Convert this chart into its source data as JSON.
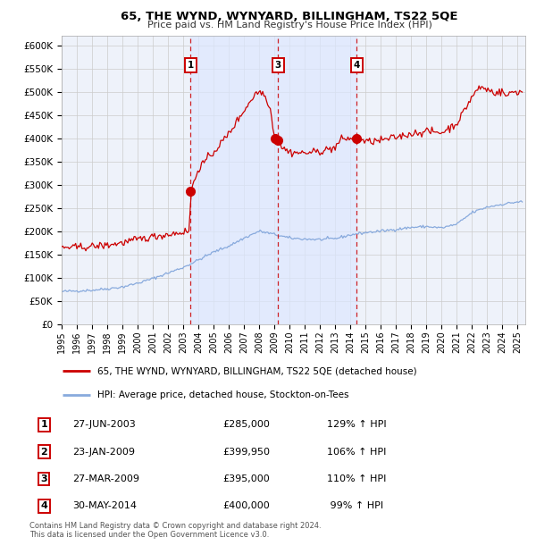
{
  "title1": "65, THE WYND, WYNYARD, BILLINGHAM, TS22 5QE",
  "title2": "Price paid vs. HM Land Registry's House Price Index (HPI)",
  "xlim_start": 1995.0,
  "xlim_end": 2025.5,
  "ylim_bottom": 0,
  "ylim_top": 620000,
  "background_color": "#ffffff",
  "plot_bg_color": "#eef2fa",
  "grid_color": "#cccccc",
  "sale_color": "#cc0000",
  "hpi_color": "#88aadd",
  "dashed_color": "#cc0000",
  "legend_sale_label": "65, THE WYND, WYNYARD, BILLINGHAM, TS22 5QE (detached house)",
  "legend_hpi_label": "HPI: Average price, detached house, Stockton-on-Tees",
  "transactions": [
    {
      "num": 1,
      "date_x": 2003.48,
      "price": 285000,
      "label": "1",
      "show_vline": true
    },
    {
      "num": 2,
      "date_x": 2009.06,
      "price": 399950,
      "label": "2",
      "show_vline": false
    },
    {
      "num": 3,
      "date_x": 2009.23,
      "price": 395000,
      "label": "3",
      "show_vline": true
    },
    {
      "num": 4,
      "date_x": 2014.41,
      "price": 400000,
      "label": "4",
      "show_vline": true
    }
  ],
  "table_rows": [
    {
      "num": "1",
      "date": "27-JUN-2003",
      "price": "£285,000",
      "hpi": "129% ↑ HPI"
    },
    {
      "num": "2",
      "date": "23-JAN-2009",
      "price": "£399,950",
      "hpi": "106% ↑ HPI"
    },
    {
      "num": "3",
      "date": "27-MAR-2009",
      "price": "£395,000",
      "hpi": "110% ↑ HPI"
    },
    {
      "num": "4",
      "date": "30-MAY-2014",
      "price": "£400,000",
      "hpi": " 99% ↑ HPI"
    }
  ],
  "footer": "Contains HM Land Registry data © Crown copyright and database right 2024.\nThis data is licensed under the Open Government Licence v3.0.",
  "yticks": [
    0,
    50000,
    100000,
    150000,
    200000,
    250000,
    300000,
    350000,
    400000,
    450000,
    500000,
    550000,
    600000
  ],
  "ytick_labels": [
    "£0",
    "£50K",
    "£100K",
    "£150K",
    "£200K",
    "£250K",
    "£300K",
    "£350K",
    "£400K",
    "£450K",
    "£500K",
    "£550K",
    "£600K"
  ],
  "xticks": [
    1995,
    1996,
    1997,
    1998,
    1999,
    2000,
    2001,
    2002,
    2003,
    2004,
    2005,
    2006,
    2007,
    2008,
    2009,
    2010,
    2011,
    2012,
    2013,
    2014,
    2015,
    2016,
    2017,
    2018,
    2019,
    2020,
    2021,
    2022,
    2023,
    2024,
    2025
  ],
  "span_color": "#dde8ff",
  "span_alpha": 0.7
}
